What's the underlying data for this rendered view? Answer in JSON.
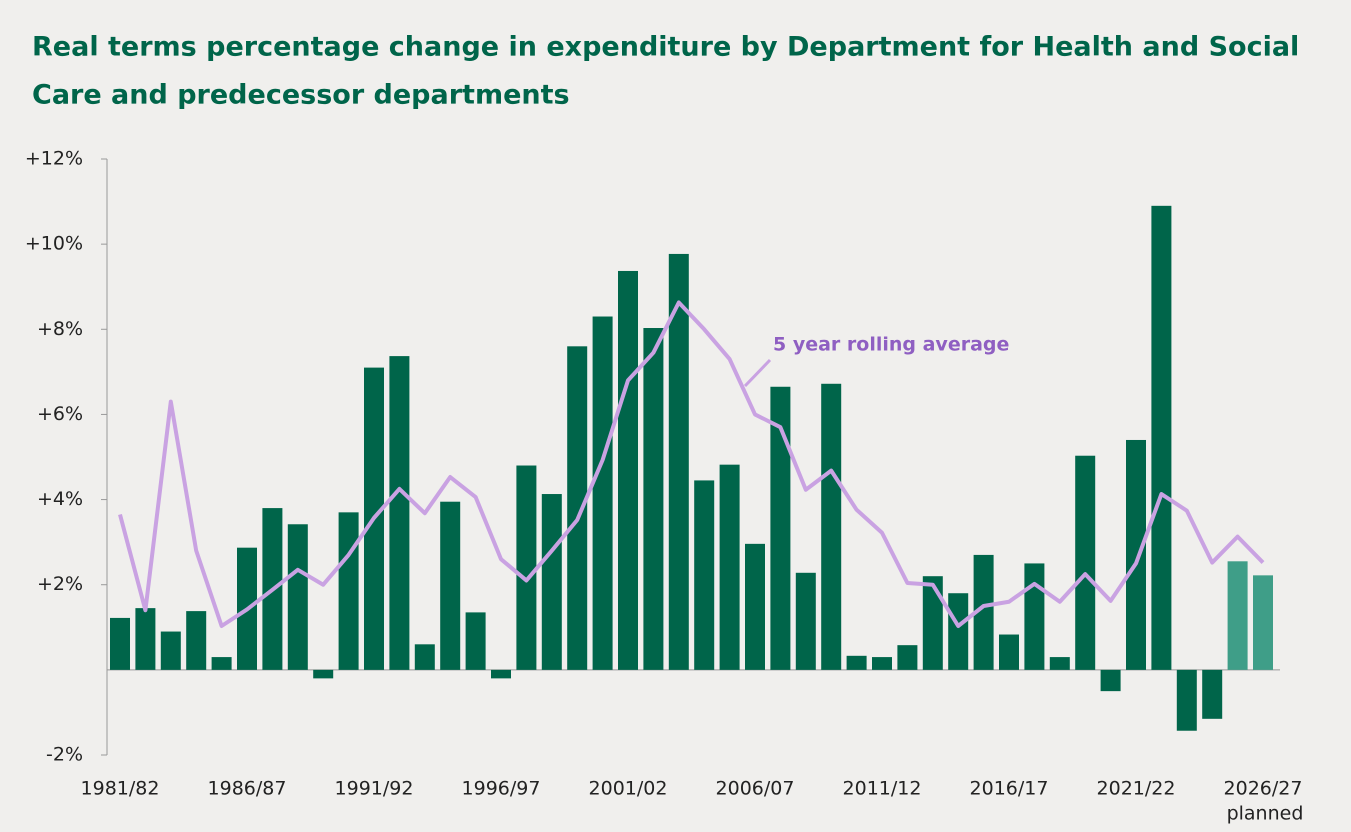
{
  "chart_data": {
    "type": "bar",
    "title_lines": [
      "Real terms percentage change in expenditure by Department for Health and Social",
      "Care and predecessor departments"
    ],
    "categories": [
      "1981/82",
      null,
      null,
      null,
      null,
      "1986/87",
      null,
      null,
      null,
      null,
      "1991/92",
      null,
      null,
      null,
      null,
      "1996/97",
      null,
      null,
      null,
      null,
      "2001/02",
      null,
      null,
      null,
      null,
      "2006/07",
      null,
      null,
      null,
      null,
      "2011/12",
      null,
      null,
      null,
      null,
      "2016/17",
      null,
      null,
      null,
      null,
      "2021/22",
      null,
      null,
      null,
      null,
      "2026/27"
    ],
    "last_category_note": "planned",
    "values": [
      1.22,
      1.45,
      0.9,
      1.38,
      0.3,
      2.87,
      3.8,
      3.42,
      -0.2,
      3.7,
      7.1,
      7.37,
      0.6,
      3.95,
      1.35,
      -0.2,
      4.8,
      4.13,
      7.6,
      8.3,
      9.37,
      8.03,
      9.77,
      4.45,
      4.82,
      2.96,
      6.65,
      2.28,
      6.72,
      0.33,
      0.3,
      0.58,
      2.2,
      1.8,
      2.7,
      0.83,
      2.5,
      0.3,
      5.03,
      -0.5,
      5.4,
      10.9,
      -1.43,
      -1.15,
      2.55,
      2.22
    ],
    "colors": [
      "#00654a",
      "#00654a",
      "#00654a",
      "#00654a",
      "#00654a",
      "#00654a",
      "#00654a",
      "#00654a",
      "#00654a",
      "#00654a",
      "#00654a",
      "#00654a",
      "#00654a",
      "#00654a",
      "#00654a",
      "#00654a",
      "#00654a",
      "#00654a",
      "#00654a",
      "#00654a",
      "#00654a",
      "#00654a",
      "#00654a",
      "#00654a",
      "#00654a",
      "#00654a",
      "#00654a",
      "#00654a",
      "#00654a",
      "#00654a",
      "#00654a",
      "#00654a",
      "#00654a",
      "#00654a",
      "#00654a",
      "#00654a",
      "#00654a",
      "#00654a",
      "#00654a",
      "#00654a",
      "#00654a",
      "#00654a",
      "#00654a",
      "#00654a",
      "#3f9e88",
      "#3f9e88"
    ],
    "line": {
      "type": "line",
      "name": "5 year rolling average",
      "color": "#c9a2e2",
      "label_color": "#8f5fc2",
      "values": [
        3.65,
        1.4,
        6.3,
        2.8,
        1.03,
        1.42,
        1.88,
        2.35,
        2.0,
        2.7,
        3.57,
        4.25,
        3.68,
        4.53,
        4.06,
        2.6,
        2.1,
        2.8,
        3.52,
        4.93,
        6.8,
        7.45,
        8.63,
        8.0,
        7.3,
        6.0,
        5.7,
        4.23,
        4.68,
        3.76,
        3.22,
        2.04,
        2.0,
        1.03,
        1.5,
        1.6,
        2.02,
        1.6,
        2.25,
        1.62,
        2.5,
        4.13,
        3.74,
        2.52,
        3.13,
        2.52
      ]
    },
    "ylim": [
      -2,
      12
    ],
    "yticks": [
      {
        "value": -2,
        "label": "-2%"
      },
      {
        "value": 2,
        "label": "+2%"
      },
      {
        "value": 4,
        "label": "+4%"
      },
      {
        "value": 6,
        "label": "+6%"
      },
      {
        "value": 8,
        "label": "+8%"
      },
      {
        "value": 10,
        "label": "+10%"
      },
      {
        "value": 12,
        "label": "+12%"
      }
    ],
    "grid": false
  }
}
